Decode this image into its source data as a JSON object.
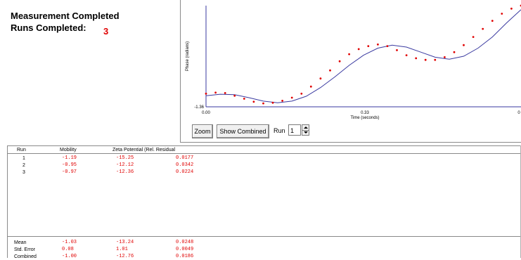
{
  "status": {
    "measurement_label": "Measurement Completed",
    "runs_label": "Runs Completed:",
    "runs_value": "3"
  },
  "controls": {
    "zoom_label": "Zoom",
    "show_combined_label": "Show Combined",
    "run_label": "Run",
    "run_value": "1"
  },
  "table": {
    "headers": [
      "Run",
      "Mobility",
      "Zeta Potential (Rel. Residual"
    ],
    "rows": [
      {
        "run": "1",
        "mobility": "-1.19",
        "zeta": "-15.25",
        "residual": "0.0177"
      },
      {
        "run": "2",
        "mobility": "-0.95",
        "zeta": "-12.12",
        "residual": "0.0342"
      },
      {
        "run": "3",
        "mobility": "-0.97",
        "zeta": "-12.36",
        "residual": "0.0224"
      }
    ],
    "summary": [
      {
        "label": "Mean",
        "mobility": "-1.03",
        "zeta": "-13.24",
        "residual": "0.0248"
      },
      {
        "label": "Std. Error",
        "mobility": "0.08",
        "zeta": "1.01",
        "residual": "0.0049"
      },
      {
        "label": "Combined",
        "mobility": "-1.00",
        "zeta": "-12.76",
        "residual": "0.0186"
      }
    ]
  },
  "chart_data": {
    "type": "scatter",
    "xlabel": "Time (seconds)",
    "ylabel": "Phase (radians)",
    "x_ticks": [
      "0.00",
      "0.33",
      "0"
    ],
    "y_ticks": [
      "-1.36"
    ],
    "xlim": [
      0,
      0.66
    ],
    "ylim": [
      -1.5,
      3.5
    ],
    "series": [
      {
        "kind": "points",
        "color": "#e00000",
        "x": [
          0.0,
          0.02,
          0.04,
          0.06,
          0.08,
          0.1,
          0.12,
          0.14,
          0.16,
          0.18,
          0.2,
          0.22,
          0.24,
          0.26,
          0.28,
          0.3,
          0.32,
          0.34,
          0.36,
          0.38,
          0.4,
          0.42,
          0.44,
          0.46,
          0.48,
          0.5,
          0.52,
          0.54,
          0.56,
          0.58,
          0.6,
          0.62,
          0.64,
          0.66
        ],
        "y": [
          -0.85,
          -0.8,
          -0.82,
          -0.95,
          -1.1,
          -1.25,
          -1.33,
          -1.3,
          -1.2,
          -1.05,
          -0.85,
          -0.5,
          -0.1,
          0.3,
          0.75,
          1.1,
          1.35,
          1.5,
          1.58,
          1.5,
          1.3,
          1.05,
          0.9,
          0.82,
          0.82,
          0.95,
          1.2,
          1.55,
          1.95,
          2.35,
          2.75,
          3.1,
          3.35,
          3.5
        ]
      },
      {
        "kind": "fit",
        "color": "#3a3aa0",
        "x": [
          0.0,
          0.03,
          0.06,
          0.09,
          0.12,
          0.15,
          0.18,
          0.21,
          0.24,
          0.27,
          0.3,
          0.33,
          0.36,
          0.39,
          0.42,
          0.45,
          0.48,
          0.51,
          0.54,
          0.57,
          0.6,
          0.63,
          0.66
        ],
        "y": [
          -0.95,
          -0.88,
          -0.9,
          -1.05,
          -1.22,
          -1.3,
          -1.22,
          -0.98,
          -0.55,
          -0.02,
          0.55,
          1.05,
          1.4,
          1.55,
          1.45,
          1.2,
          0.95,
          0.85,
          1.0,
          1.4,
          1.95,
          2.65,
          3.3
        ]
      }
    ]
  }
}
